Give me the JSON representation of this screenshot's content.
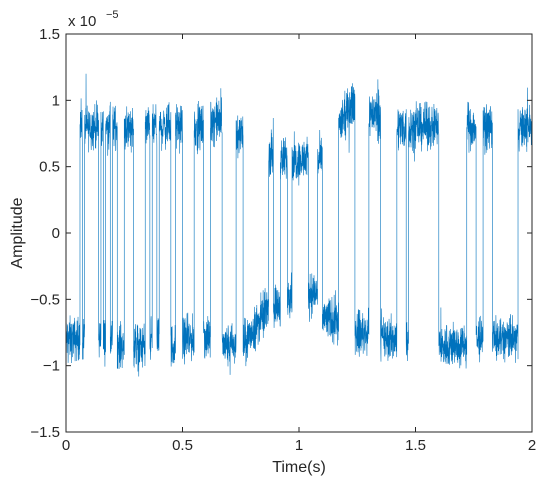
{
  "chart_data": {
    "type": "line",
    "title": "",
    "xlabel": "Time(s)",
    "ylabel": "Amplitude",
    "xlim": [
      0,
      2
    ],
    "ylim": [
      -1.5,
      1.5
    ],
    "x_ticks": [
      0,
      0.5,
      1,
      1.5,
      2
    ],
    "x_tick_labels": [
      "0",
      "0.5",
      "1",
      "1.5",
      "2"
    ],
    "y_ticks": [
      -1.5,
      -1,
      -0.5,
      0,
      0.5,
      1,
      1.5
    ],
    "y_tick_labels": [
      "−1.5",
      "−1",
      "−0.5",
      "0",
      "0.5",
      "1",
      "1.5"
    ],
    "y_exponent_prefix": "x 10",
    "y_exponent_power": "−5",
    "grid": false,
    "legend": "none",
    "line_color": "#0072BD",
    "axis_color": "#262626",
    "series": [
      {
        "description_of_envelope": "telegraph-like switching signal between about +0.8 and -0.8 (x1e-5) with noise",
        "segments": [
          {
            "x0": 0.0,
            "x1": 0.06,
            "level": -0.8
          },
          {
            "x0": 0.06,
            "x1": 0.07,
            "level": 0.8
          },
          {
            "x0": 0.07,
            "x1": 0.08,
            "level": -0.8
          },
          {
            "x0": 0.08,
            "x1": 0.14,
            "level": 0.8
          },
          {
            "x0": 0.14,
            "x1": 0.15,
            "level": -0.8
          },
          {
            "x0": 0.15,
            "x1": 0.16,
            "level": 0.8
          },
          {
            "x0": 0.16,
            "x1": 0.17,
            "level": -0.8
          },
          {
            "x0": 0.17,
            "x1": 0.19,
            "level": 0.8
          },
          {
            "x0": 0.19,
            "x1": 0.2,
            "level": -0.8
          },
          {
            "x0": 0.2,
            "x1": 0.22,
            "level": 0.8
          },
          {
            "x0": 0.22,
            "x1": 0.25,
            "level": -0.85
          },
          {
            "x0": 0.25,
            "x1": 0.29,
            "level": 0.8
          },
          {
            "x0": 0.29,
            "x1": 0.34,
            "level": -0.85
          },
          {
            "x0": 0.34,
            "x1": 0.36,
            "level": 0.8
          },
          {
            "x0": 0.36,
            "x1": 0.37,
            "level": -0.8
          },
          {
            "x0": 0.37,
            "x1": 0.39,
            "level": 0.8
          },
          {
            "x0": 0.39,
            "x1": 0.4,
            "level": -0.8
          },
          {
            "x0": 0.4,
            "x1": 0.45,
            "level": 0.8
          },
          {
            "x0": 0.45,
            "x1": 0.47,
            "level": -0.85
          },
          {
            "x0": 0.47,
            "x1": 0.5,
            "level": 0.8
          },
          {
            "x0": 0.5,
            "x1": 0.55,
            "level": -0.8
          },
          {
            "x0": 0.55,
            "x1": 0.59,
            "level": 0.8
          },
          {
            "x0": 0.59,
            "x1": 0.62,
            "level": -0.8
          },
          {
            "x0": 0.62,
            "x1": 0.67,
            "level": 0.85
          },
          {
            "x0": 0.67,
            "x1": 0.73,
            "level": -0.85
          },
          {
            "x0": 0.73,
            "x1": 0.76,
            "level": 0.75
          },
          {
            "x0": 0.76,
            "x1": 0.87,
            "level": -0.85,
            "trend_to": -0.55
          },
          {
            "x0": 0.87,
            "x1": 0.89,
            "level": 0.6
          },
          {
            "x0": 0.89,
            "x1": 0.92,
            "level": -0.55
          },
          {
            "x0": 0.92,
            "x1": 0.95,
            "level": 0.55
          },
          {
            "x0": 0.95,
            "x1": 0.97,
            "level": -0.45
          },
          {
            "x0": 0.97,
            "x1": 1.04,
            "level": 0.55
          },
          {
            "x0": 1.04,
            "x1": 1.08,
            "level": -0.45
          },
          {
            "x0": 1.08,
            "x1": 1.1,
            "level": 0.55
          },
          {
            "x0": 1.1,
            "x1": 1.17,
            "level": -0.65
          },
          {
            "x0": 1.17,
            "x1": 1.24,
            "level": 0.8,
            "trend_to": 1.0
          },
          {
            "x0": 1.24,
            "x1": 1.3,
            "level": -0.75
          },
          {
            "x0": 1.3,
            "x1": 1.35,
            "level": 0.9
          },
          {
            "x0": 1.35,
            "x1": 1.42,
            "level": -0.8
          },
          {
            "x0": 1.42,
            "x1": 1.46,
            "level": 0.8
          },
          {
            "x0": 1.46,
            "x1": 1.47,
            "level": -0.8
          },
          {
            "x0": 1.47,
            "x1": 1.6,
            "level": 0.8
          },
          {
            "x0": 1.6,
            "x1": 1.63,
            "level": -0.85
          },
          {
            "x0": 1.63,
            "x1": 1.72,
            "level": -0.85
          },
          {
            "x0": 1.72,
            "x1": 1.76,
            "level": 0.8
          },
          {
            "x0": 1.76,
            "x1": 1.79,
            "level": -0.8
          },
          {
            "x0": 1.79,
            "x1": 1.83,
            "level": 0.8
          },
          {
            "x0": 1.83,
            "x1": 1.94,
            "level": -0.8
          },
          {
            "x0": 1.94,
            "x1": 1.97,
            "level": 0.8
          },
          {
            "x0": 1.97,
            "x1": 2.0,
            "level": 0.8
          }
        ]
      }
    ]
  }
}
